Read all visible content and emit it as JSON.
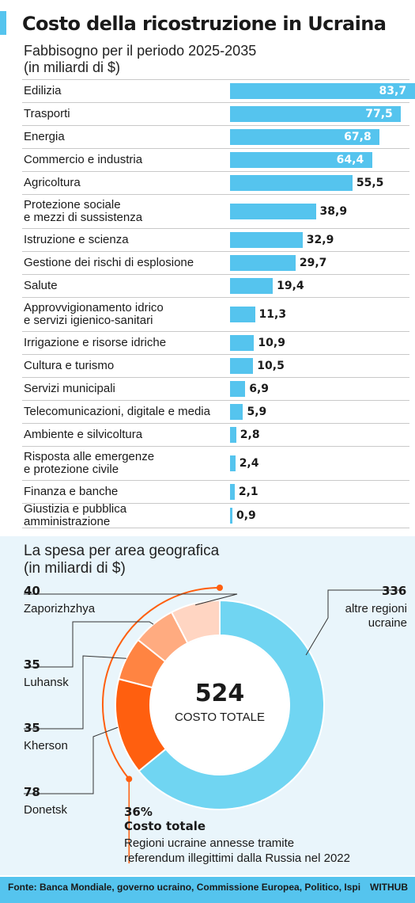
{
  "title": "Costo della ricostruzione in Ucraina",
  "subtitle_lines": [
    "Fabbisogno per il periodo 2025-2035",
    "(in miliardi di $)"
  ],
  "chart_data": [
    {
      "type": "bar",
      "orientation": "horizontal",
      "title": "Fabbisogno per il periodo 2025-2035 (in miliardi di $)",
      "categories": [
        "Edilizia",
        "Trasporti",
        "Energia",
        "Commercio e industria",
        "Agricoltura",
        "Protezione sociale e mezzi di sussistenza",
        "Istruzione e scienza",
        "Gestione dei rischi di esplosione",
        "Salute",
        "Approvvigionamento idrico e servizi igienico-sanitari",
        "Irrigazione e risorse idriche",
        "Cultura e turismo",
        "Servizi municipali",
        "Telecomunicazioni, digitale e media",
        "Ambiente e silvicoltura",
        "Risposta alle emergenze e protezione civile",
        "Finanza e banche",
        "Giustizia e pubblica amministrazione"
      ],
      "category_lines": [
        [
          "Edilizia"
        ],
        [
          "Trasporti"
        ],
        [
          "Energia"
        ],
        [
          "Commercio e industria"
        ],
        [
          "Agricoltura"
        ],
        [
          "Protezione sociale",
          "e mezzi di sussistenza"
        ],
        [
          "Istruzione e scienza"
        ],
        [
          "Gestione dei rischi di esplosione"
        ],
        [
          "Salute"
        ],
        [
          "Approvvigionamento idrico",
          "e servizi igienico-sanitari"
        ],
        [
          "Irrigazione e risorse idriche"
        ],
        [
          "Cultura e turismo"
        ],
        [
          "Servizi municipali"
        ],
        [
          "Telecomunicazioni, digitale e media"
        ],
        [
          "Ambiente e silvicoltura"
        ],
        [
          "Risposta alle emergenze",
          "e protezione civile"
        ],
        [
          "Finanza e banche"
        ],
        [
          "Giustizia e pubblica",
          "amministrazione"
        ]
      ],
      "values": [
        83.7,
        77.5,
        67.8,
        64.4,
        55.5,
        38.9,
        32.9,
        29.7,
        19.4,
        11.3,
        10.9,
        10.5,
        6.9,
        5.9,
        2.8,
        2.4,
        2.1,
        0.9
      ],
      "value_labels": [
        "83,7",
        "77,5",
        "67,8",
        "64,4",
        "55,5",
        "38,9",
        "32,9",
        "29,7",
        "19,4",
        "11,3",
        "10,9",
        "10,5",
        "6,9",
        "5,9",
        "2,8",
        "2,4",
        "2,1",
        "0,9"
      ],
      "color": "#55c4ee"
    },
    {
      "type": "pie",
      "title": "La spesa per area geografica (in miliardi di $)",
      "title_lines": [
        "La spesa per area geografica",
        "(in miliardi di $)"
      ],
      "categories": [
        "altre regioni ucraine",
        "Donetsk",
        "Kherson",
        "Luhansk",
        "Zaporizhzhya"
      ],
      "values": [
        336,
        78,
        35,
        35,
        40
      ],
      "colors": [
        "#70d5f2",
        "#ff5f0f",
        "#ff8442",
        "#ffab80",
        "#ffd5c2"
      ],
      "total": "524",
      "total_label": "COSTO TOTALE",
      "highlight": {
        "percent": "36%",
        "label": "Costo totale",
        "note_lines": [
          "Regioni ucraine annesse tramite",
          "referendum illegittimi dalla Russia nel 2022"
        ]
      }
    }
  ],
  "regions": {
    "zaporizhzhya": {
      "value": "40",
      "name": "Zaporizhzhya"
    },
    "luhansk": {
      "value": "35",
      "name": "Luhansk"
    },
    "kherson": {
      "value": "35",
      "name": "Kherson"
    },
    "donetsk": {
      "value": "78",
      "name": "Donetsk"
    },
    "altre": {
      "value": "336",
      "name_lines": [
        "altre regioni",
        "ucraine"
      ]
    }
  },
  "footer": {
    "source": "Fonte: Banca Mondiale, governo ucraino, Commissione Europea, Politico, Ispi",
    "brand": "WITHUB"
  },
  "colors": {
    "bar": "#55c4ee",
    "accent_orange": "#ff5f0f",
    "panel": "#e9f5fb",
    "footer": "#55c4ee"
  }
}
